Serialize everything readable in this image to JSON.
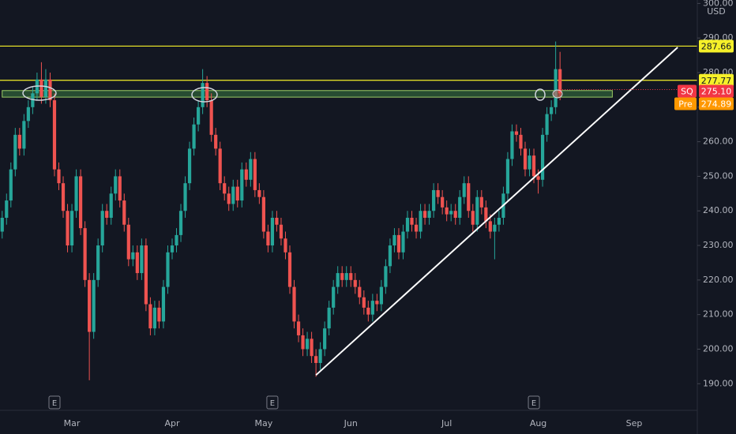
{
  "chart_data": {
    "type": "candlestick",
    "currency": "USD",
    "categories": [
      null,
      null,
      null,
      null,
      null,
      null,
      null,
      null,
      null,
      null,
      null,
      null,
      null,
      null,
      null,
      null,
      "Mar",
      null,
      null,
      null,
      null,
      null,
      null,
      null,
      null,
      null,
      null,
      null,
      null,
      null,
      null,
      null,
      null,
      null,
      null,
      null,
      null,
      null,
      null,
      "Apr",
      null,
      null,
      null,
      null,
      null,
      null,
      null,
      null,
      null,
      null,
      null,
      null,
      null,
      null,
      null,
      null,
      null,
      null,
      null,
      null,
      "May",
      null,
      null,
      null,
      null,
      null,
      null,
      null,
      null,
      null,
      null,
      null,
      null,
      null,
      null,
      null,
      null,
      null,
      null,
      null,
      "Jun",
      null,
      null,
      null,
      null,
      null,
      null,
      null,
      null,
      null,
      null,
      null,
      null,
      null,
      null,
      null,
      null,
      null,
      null,
      null,
      null,
      null,
      "Jul",
      null,
      null,
      null,
      null,
      null,
      null,
      null,
      null,
      null,
      null,
      null,
      null,
      null,
      null,
      null,
      null,
      null,
      null,
      null,
      null,
      "Aug",
      null,
      null,
      null,
      null,
      null,
      null,
      null,
      null,
      null,
      null,
      null,
      null,
      null,
      null,
      null,
      null,
      null,
      null,
      null,
      null,
      null,
      "Sep",
      null,
      null,
      null,
      null,
      null,
      null,
      null,
      null,
      null,
      null,
      null,
      null,
      null,
      null
    ],
    "series": [
      {
        "name": "SQ",
        "up_color": "#26a69a",
        "down_color": "#ef5350",
        "open": [
          234,
          238,
          243,
          252,
          262,
          258,
          266,
          270,
          274,
          278,
          273,
          278,
          272,
          252,
          248,
          240,
          230,
          240,
          250,
          235,
          220,
          205,
          220,
          230,
          240,
          238,
          245,
          250,
          243,
          236,
          226,
          228,
          222,
          230,
          213,
          206,
          212,
          208,
          218,
          228,
          230,
          233,
          240,
          248,
          258,
          265,
          270,
          277,
          272,
          262,
          258,
          248,
          245,
          242,
          247,
          243,
          252,
          249,
          255,
          246,
          244,
          234,
          230,
          238,
          236,
          232,
          228,
          218,
          208,
          204,
          200,
          203,
          198,
          196,
          200,
          206,
          212,
          218,
          222,
          220,
          222,
          220,
          218,
          215,
          212,
          210,
          214,
          213,
          218,
          224,
          230,
          233,
          228,
          234,
          238,
          236,
          234,
          240,
          238,
          240,
          246,
          244,
          241,
          239,
          240,
          238,
          244,
          248,
          240,
          236,
          244,
          241,
          237,
          234,
          236,
          238,
          245,
          255,
          263,
          262,
          258,
          252,
          256,
          250,
          249,
          262,
          268,
          270,
          281,
          null,
          null,
          null,
          null,
          null,
          null,
          null,
          null,
          null,
          null,
          null,
          null,
          null,
          null,
          null,
          null,
          null,
          null,
          null,
          null,
          null,
          null,
          null,
          null,
          null,
          null,
          null,
          null,
          null,
          null,
          null
        ],
        "high": [
          240,
          245,
          254,
          264,
          264,
          268,
          272,
          276,
          280,
          283,
          281,
          280,
          274,
          254,
          250,
          242,
          242,
          252,
          252,
          237,
          222,
          222,
          232,
          242,
          242,
          247,
          252,
          252,
          245,
          238,
          230,
          230,
          232,
          232,
          215,
          214,
          214,
          220,
          230,
          232,
          235,
          242,
          250,
          260,
          267,
          272,
          281,
          279,
          274,
          264,
          260,
          250,
          247,
          249,
          249,
          254,
          254,
          257,
          257,
          248,
          246,
          236,
          240,
          240,
          238,
          234,
          230,
          220,
          210,
          206,
          205,
          205,
          200,
          202,
          208,
          214,
          220,
          224,
          224,
          224,
          224,
          222,
          220,
          217,
          214,
          216,
          216,
          220,
          226,
          232,
          235,
          235,
          236,
          240,
          240,
          238,
          242,
          242,
          242,
          248,
          248,
          246,
          243,
          242,
          242,
          246,
          250,
          250,
          242,
          246,
          246,
          243,
          239,
          238,
          240,
          247,
          257,
          265,
          265,
          264,
          260,
          258,
          258,
          252,
          264,
          270,
          272,
          289,
          286,
          null,
          null,
          null,
          null,
          null,
          null,
          null,
          null,
          null,
          null,
          null,
          null,
          null,
          null,
          null,
          null,
          null,
          null,
          null,
          null,
          null,
          null,
          null,
          null,
          null,
          null,
          null,
          null,
          null,
          null,
          null
        ],
        "low": [
          232,
          236,
          241,
          250,
          256,
          256,
          264,
          268,
          272,
          271,
          271,
          270,
          250,
          246,
          238,
          228,
          228,
          238,
          233,
          218,
          191,
          203,
          218,
          228,
          236,
          236,
          243,
          241,
          234,
          224,
          224,
          220,
          220,
          211,
          204,
          204,
          206,
          206,
          216,
          226,
          228,
          231,
          238,
          246,
          256,
          263,
          268,
          270,
          260,
          256,
          246,
          243,
          240,
          240,
          241,
          241,
          247,
          247,
          244,
          242,
          232,
          228,
          228,
          234,
          230,
          226,
          216,
          206,
          202,
          198,
          198,
          196,
          192,
          194,
          198,
          204,
          210,
          216,
          218,
          218,
          218,
          216,
          213,
          210,
          208,
          208,
          211,
          211,
          216,
          222,
          228,
          226,
          226,
          232,
          234,
          232,
          232,
          236,
          236,
          238,
          242,
          239,
          237,
          237,
          236,
          236,
          242,
          238,
          234,
          234,
          239,
          235,
          232,
          226,
          234,
          236,
          243,
          253,
          260,
          256,
          250,
          250,
          248,
          245,
          247,
          260,
          266,
          268,
          272,
          null,
          null,
          null,
          null,
          null,
          null,
          null,
          null,
          null,
          null,
          null,
          null,
          null,
          null,
          null,
          null,
          null,
          null,
          null,
          null,
          null,
          null,
          null,
          null,
          null,
          null,
          null,
          null,
          null,
          null,
          null
        ],
        "close": [
          238,
          243,
          252,
          262,
          258,
          266,
          270,
          274,
          278,
          273,
          278,
          272,
          252,
          248,
          240,
          230,
          240,
          250,
          235,
          220,
          205,
          220,
          230,
          240,
          238,
          245,
          250,
          243,
          236,
          226,
          228,
          222,
          230,
          213,
          206,
          212,
          208,
          218,
          228,
          230,
          233,
          240,
          248,
          258,
          265,
          270,
          277,
          272,
          262,
          258,
          248,
          245,
          242,
          247,
          243,
          252,
          249,
          255,
          246,
          244,
          234,
          230,
          238,
          236,
          232,
          228,
          218,
          208,
          204,
          200,
          203,
          198,
          196,
          200,
          206,
          212,
          218,
          222,
          220,
          222,
          220,
          218,
          215,
          212,
          210,
          214,
          213,
          218,
          224,
          230,
          233,
          228,
          234,
          238,
          236,
          234,
          240,
          238,
          240,
          246,
          244,
          241,
          239,
          240,
          238,
          244,
          248,
          240,
          236,
          244,
          241,
          237,
          234,
          236,
          238,
          245,
          255,
          263,
          262,
          258,
          252,
          256,
          250,
          249,
          262,
          268,
          270,
          281,
          274,
          null,
          null,
          null,
          null,
          null,
          null,
          null,
          null,
          null,
          null,
          null,
          null,
          null,
          null,
          null,
          null,
          null,
          null,
          null,
          null,
          null,
          null,
          null,
          null,
          null,
          null,
          null,
          null,
          null,
          null,
          null
        ]
      }
    ],
    "ylim": [
      182.3,
      301
    ],
    "yticks": [
      {
        "value": 190,
        "label": "190.00"
      },
      {
        "value": 200,
        "label": "200.00"
      },
      {
        "value": 210,
        "label": "210.00"
      },
      {
        "value": 220,
        "label": "220.00"
      },
      {
        "value": 230,
        "label": "230.00"
      },
      {
        "value": 240,
        "label": "240.00"
      },
      {
        "value": 250,
        "label": "250.00"
      },
      {
        "value": 260,
        "label": "260.00"
      },
      {
        "value": 270,
        "label": "270.00"
      },
      {
        "value": 280,
        "label": "280.00"
      },
      {
        "value": 290,
        "label": "290.00"
      },
      {
        "value": 300,
        "label": "300.00"
      }
    ],
    "levels": [
      287.66,
      277.77
    ],
    "level_color": "#f5f029",
    "zone": {
      "from": 272.9,
      "to": 274.8,
      "end_index": 140
    },
    "last_price": {
      "name": "SQ",
      "value": 275.1,
      "label": "275.10",
      "color": "#f23645"
    },
    "premarket": {
      "name": "Pre",
      "value": 274.89,
      "color": "#ff9800"
    },
    "trendline": {
      "start": [
        72,
        192.5
      ],
      "end": [
        155,
        287.3
      ],
      "color": "#ffffff"
    },
    "earnings": [
      {
        "index": 12,
        "label": "E"
      },
      {
        "index": 62,
        "label": "E"
      },
      {
        "index": 122,
        "label": "E"
      }
    ]
  }
}
